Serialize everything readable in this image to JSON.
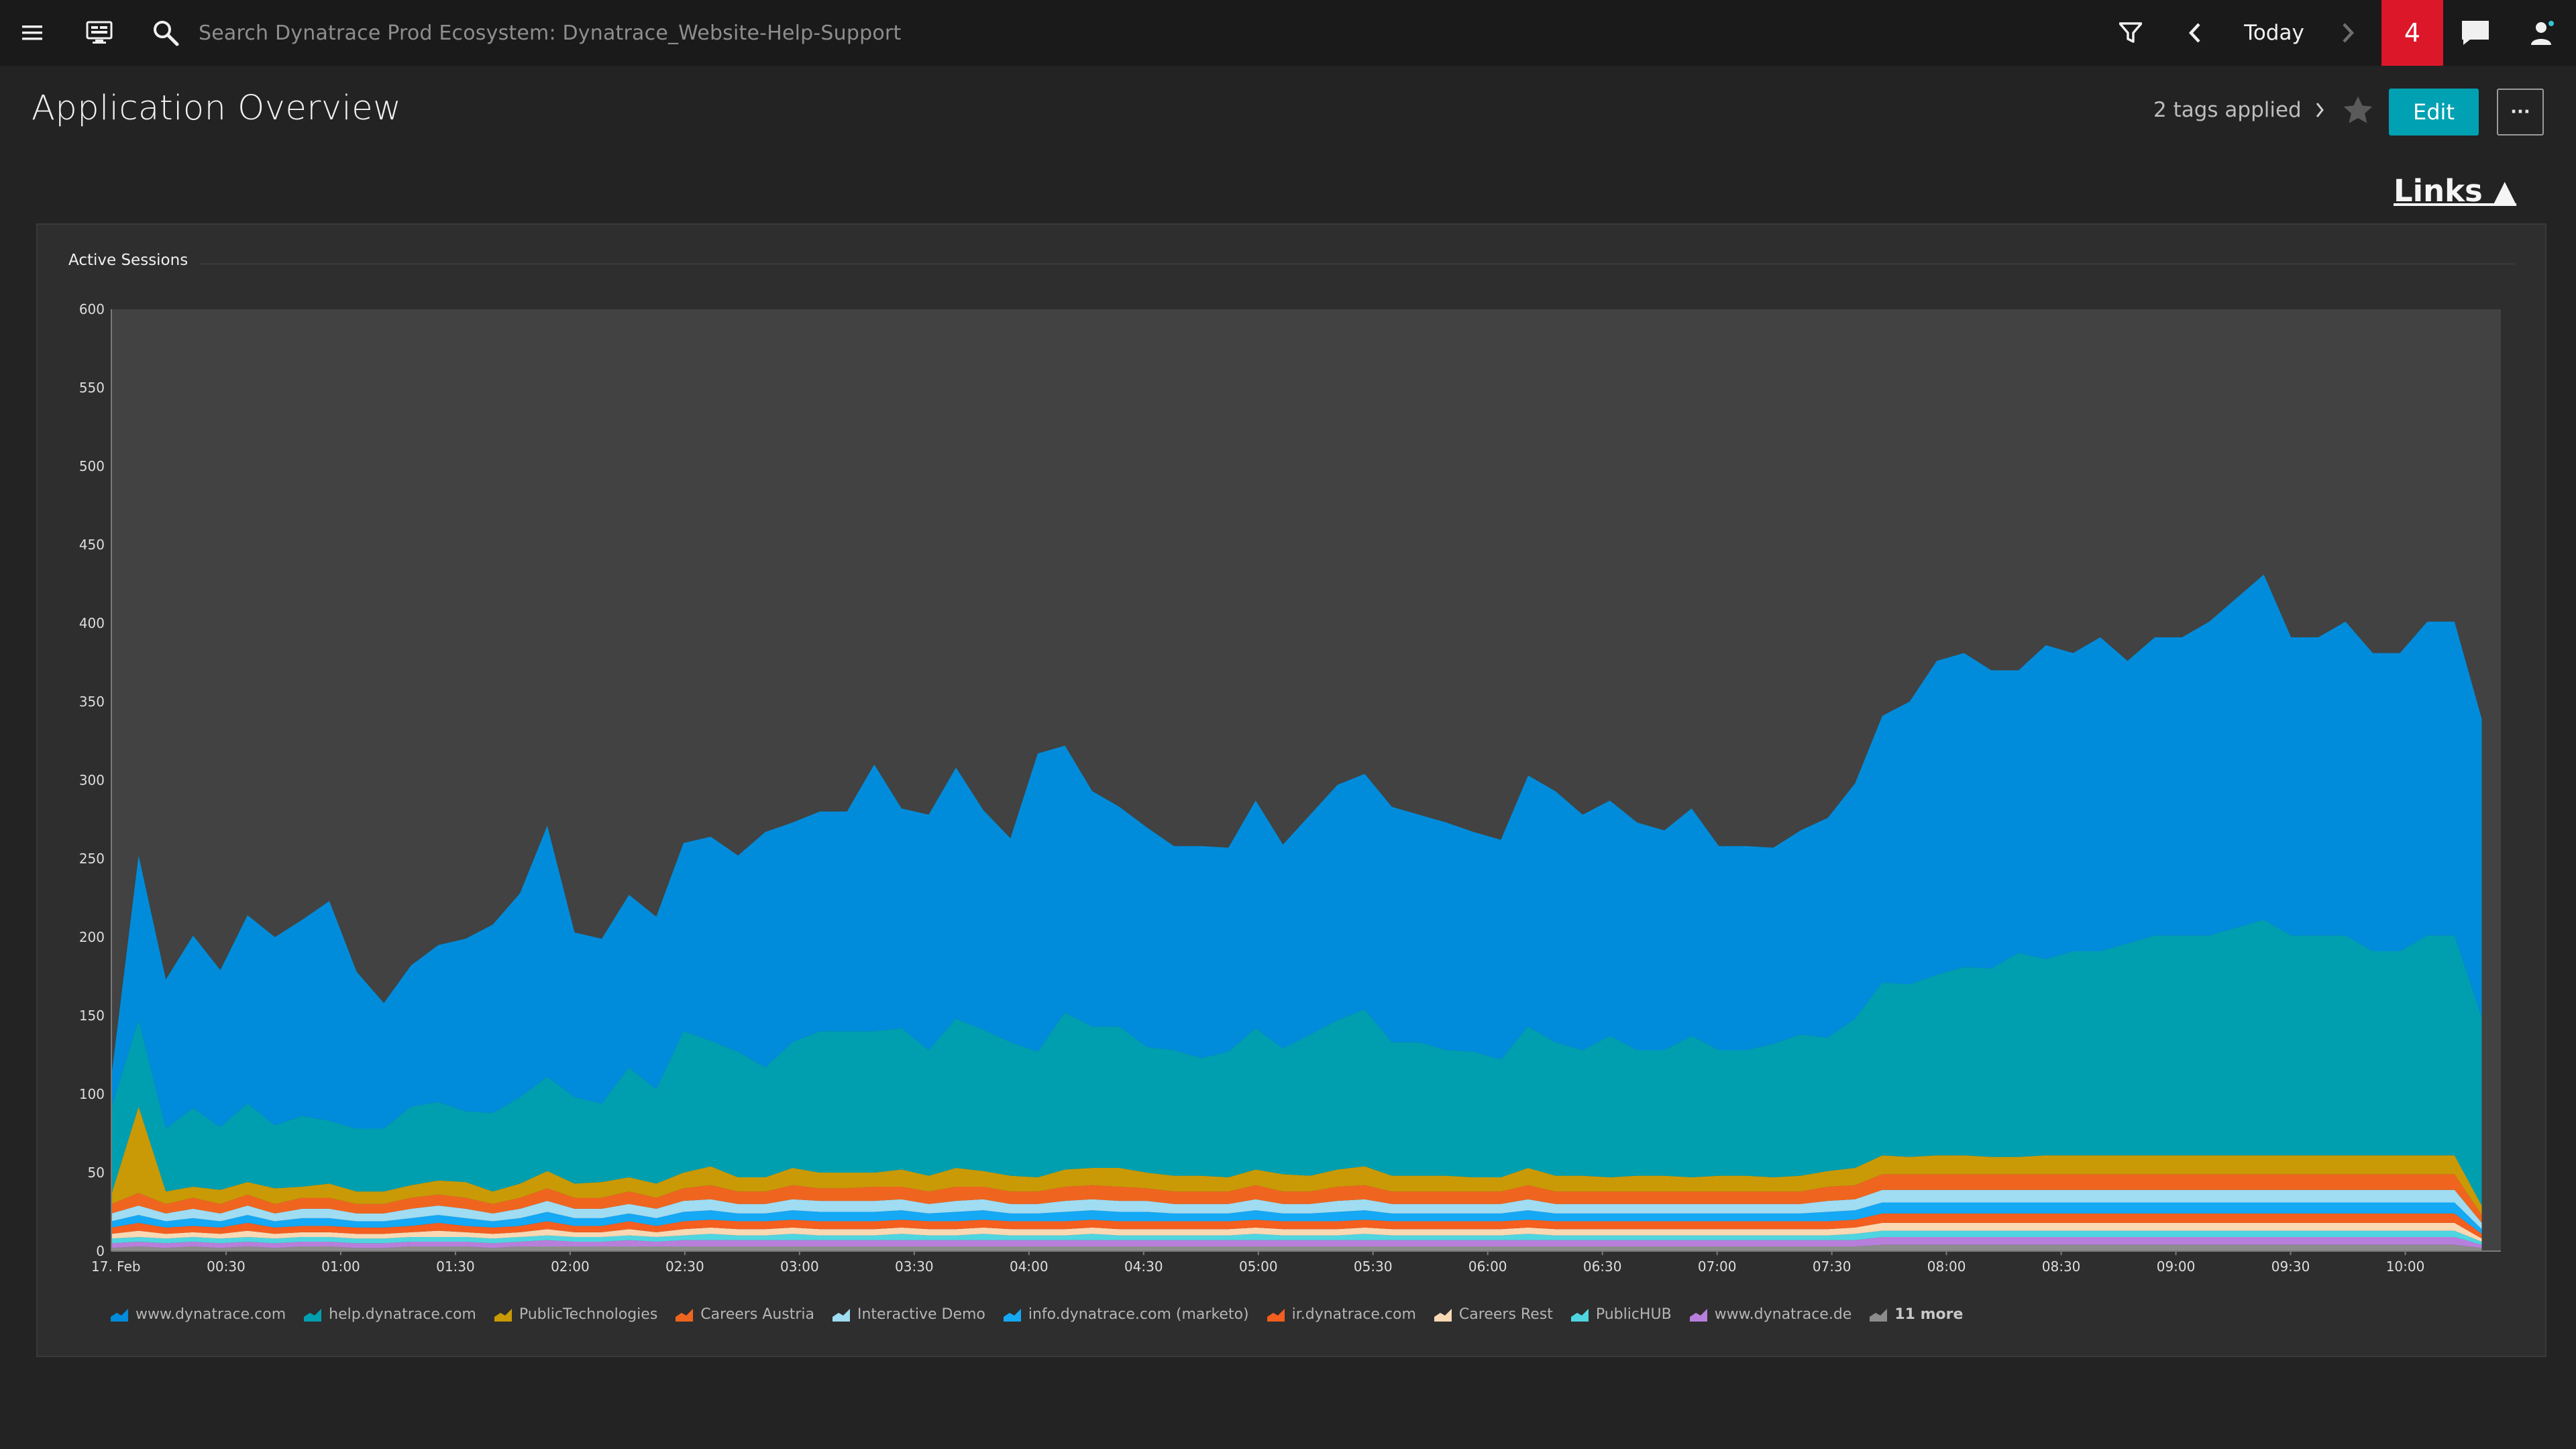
{
  "topbar": {
    "search_placeholder": "Search Dynatrace Prod Ecosystem: Dynatrace_Website-Help-Support",
    "timeframe_label": "Today",
    "problems_count": "4"
  },
  "header": {
    "title": "Application Overview",
    "tags_label": "2 tags applied",
    "edit_label": "Edit",
    "more_label": "···",
    "links_label": "Links ▲"
  },
  "tile": {
    "title": "Active Sessions"
  },
  "chart_data": {
    "type": "area",
    "stacked": true,
    "title": "Active Sessions",
    "x_start_label": "17. Feb",
    "x_ticks": [
      "00:30",
      "01:00",
      "01:30",
      "02:00",
      "02:30",
      "03:00",
      "03:30",
      "04:00",
      "04:30",
      "05:00",
      "05:30",
      "06:00",
      "06:30",
      "07:00",
      "07:30",
      "08:00",
      "08:30",
      "09:00",
      "09:30",
      "10:00"
    ],
    "y_ticks": [
      0,
      50,
      100,
      150,
      200,
      250,
      300,
      350,
      400,
      450,
      500,
      550,
      600
    ],
    "ylim": [
      0,
      600
    ],
    "time_range": [
      "00:00",
      "10:20"
    ],
    "series": [
      {
        "name": "www.dynatrace.com",
        "color": "#008cdb",
        "values": [
          20,
          105,
          95,
          110,
          100,
          120,
          120,
          125,
          140,
          100,
          80,
          90,
          100,
          110,
          120,
          130,
          160,
          105,
          105,
          110,
          110,
          120,
          130,
          125,
          150,
          140,
          140,
          140,
          170,
          140,
          150,
          160,
          140,
          130,
          190,
          170,
          150,
          140,
          140,
          130,
          135,
          130,
          145,
          130,
          140,
          150,
          150,
          150,
          145,
          145,
          140,
          140,
          160,
          160,
          150,
          150,
          145,
          140,
          145,
          130,
          130,
          125,
          130,
          140,
          150,
          170,
          180,
          200,
          200,
          190,
          180,
          200,
          190,
          200,
          180,
          190,
          190,
          200,
          210,
          220,
          190,
          190,
          200,
          190,
          190,
          200,
          200,
          190
        ]
      },
      {
        "name": "help.dynatrace.com",
        "color": "#009fb0",
        "values": [
          55,
          55,
          40,
          50,
          40,
          50,
          40,
          45,
          40,
          40,
          40,
          50,
          50,
          45,
          50,
          55,
          60,
          55,
          50,
          70,
          60,
          90,
          80,
          80,
          70,
          80,
          90,
          90,
          90,
          90,
          80,
          95,
          90,
          85,
          80,
          100,
          90,
          90,
          80,
          80,
          75,
          80,
          90,
          80,
          90,
          95,
          100,
          85,
          85,
          80,
          80,
          75,
          90,
          85,
          80,
          90,
          80,
          80,
          90,
          80,
          80,
          85,
          90,
          85,
          95,
          110,
          110,
          115,
          120,
          120,
          130,
          125,
          130,
          130,
          135,
          140,
          140,
          140,
          145,
          150,
          140,
          140,
          140,
          130,
          130,
          140,
          140,
          120
        ]
      },
      {
        "name": "PublicTechnologies",
        "color": "#c99a06",
        "values": [
          6,
          55,
          8,
          7,
          9,
          8,
          10,
          7,
          9,
          8,
          8,
          8,
          9,
          10,
          8,
          9,
          11,
          9,
          10,
          9,
          9,
          10,
          12,
          9,
          9,
          11,
          10,
          10,
          9,
          11,
          10,
          12,
          10,
          10,
          9,
          11,
          11,
          12,
          10,
          10,
          10,
          9,
          10,
          11,
          10,
          11,
          12,
          10,
          10,
          10,
          9,
          9,
          11,
          10,
          10,
          9,
          10,
          10,
          9,
          10,
          10,
          9,
          10,
          10,
          11,
          12,
          11,
          12,
          12,
          11,
          11,
          12,
          12,
          12,
          12,
          12,
          12,
          12,
          12,
          12,
          12,
          12,
          12,
          12,
          12,
          12,
          12,
          6
        ]
      },
      {
        "name": "Careers Austria",
        "color": "#ef651f",
        "values": [
          6,
          8,
          6,
          7,
          6,
          7,
          6,
          7,
          7,
          6,
          6,
          7,
          7,
          7,
          6,
          7,
          8,
          7,
          7,
          8,
          7,
          8,
          9,
          8,
          8,
          9,
          8,
          8,
          9,
          8,
          8,
          9,
          8,
          8,
          8,
          9,
          9,
          9,
          8,
          8,
          8,
          8,
          9,
          8,
          8,
          9,
          9,
          8,
          8,
          8,
          8,
          8,
          9,
          8,
          8,
          8,
          8,
          8,
          8,
          8,
          8,
          8,
          8,
          9,
          9,
          10,
          10,
          10,
          10,
          10,
          10,
          10,
          10,
          10,
          10,
          10,
          10,
          10,
          10,
          10,
          10,
          10,
          10,
          10,
          10,
          10,
          10,
          5
        ]
      },
      {
        "name": "Interactive Demo",
        "color": "#a0dcf2",
        "values": [
          5,
          6,
          5,
          6,
          5,
          6,
          5,
          6,
          6,
          5,
          5,
          6,
          6,
          6,
          5,
          6,
          7,
          6,
          6,
          6,
          6,
          7,
          7,
          6,
          6,
          7,
          7,
          7,
          7,
          7,
          6,
          7,
          7,
          6,
          6,
          7,
          7,
          7,
          7,
          6,
          6,
          6,
          7,
          6,
          6,
          7,
          7,
          6,
          6,
          6,
          6,
          6,
          7,
          6,
          6,
          6,
          6,
          6,
          6,
          6,
          6,
          6,
          6,
          7,
          7,
          8,
          8,
          8,
          8,
          8,
          8,
          8,
          8,
          8,
          8,
          8,
          8,
          8,
          8,
          8,
          8,
          8,
          8,
          8,
          8,
          8,
          8,
          4
        ]
      },
      {
        "name": "info.dynatrace.com (marketo)",
        "color": "#14a8f5",
        "values": [
          4,
          5,
          4,
          5,
          4,
          5,
          4,
          5,
          5,
          4,
          4,
          5,
          5,
          5,
          4,
          5,
          6,
          5,
          5,
          5,
          5,
          6,
          6,
          5,
          5,
          6,
          6,
          6,
          6,
          6,
          5,
          6,
          6,
          5,
          5,
          6,
          6,
          6,
          6,
          5,
          5,
          5,
          6,
          5,
          5,
          6,
          6,
          5,
          5,
          5,
          5,
          5,
          6,
          5,
          5,
          5,
          5,
          5,
          5,
          5,
          5,
          5,
          5,
          6,
          6,
          7,
          7,
          7,
          7,
          7,
          7,
          7,
          7,
          7,
          7,
          7,
          7,
          7,
          7,
          7,
          7,
          7,
          7,
          7,
          7,
          7,
          7,
          3
        ]
      },
      {
        "name": "ir.dynatrace.com",
        "color": "#f45e1e",
        "values": [
          4,
          5,
          4,
          4,
          4,
          5,
          4,
          4,
          4,
          4,
          4,
          4,
          5,
          4,
          4,
          4,
          5,
          4,
          4,
          5,
          4,
          5,
          5,
          5,
          5,
          5,
          5,
          5,
          5,
          5,
          5,
          5,
          5,
          5,
          5,
          5,
          5,
          5,
          5,
          5,
          5,
          5,
          5,
          5,
          5,
          5,
          5,
          5,
          5,
          5,
          5,
          5,
          5,
          5,
          5,
          5,
          5,
          5,
          5,
          5,
          5,
          5,
          5,
          5,
          5,
          6,
          6,
          6,
          6,
          6,
          6,
          6,
          6,
          6,
          6,
          6,
          6,
          6,
          6,
          6,
          6,
          6,
          6,
          6,
          6,
          6,
          6,
          3
        ]
      },
      {
        "name": "Careers Rest",
        "color": "#f9d8b4",
        "values": [
          3,
          4,
          3,
          3,
          3,
          4,
          3,
          3,
          3,
          3,
          3,
          3,
          4,
          3,
          3,
          3,
          4,
          3,
          3,
          4,
          3,
          4,
          4,
          4,
          4,
          4,
          4,
          4,
          4,
          4,
          4,
          4,
          4,
          4,
          4,
          4,
          4,
          4,
          4,
          4,
          4,
          4,
          4,
          4,
          4,
          4,
          4,
          4,
          4,
          4,
          4,
          4,
          4,
          4,
          4,
          4,
          4,
          4,
          4,
          4,
          4,
          4,
          4,
          4,
          4,
          5,
          5,
          5,
          5,
          5,
          5,
          5,
          5,
          5,
          5,
          5,
          5,
          5,
          5,
          5,
          5,
          5,
          5,
          5,
          5,
          5,
          5,
          2
        ]
      },
      {
        "name": "PublicHUB",
        "color": "#4fd5e0",
        "values": [
          3,
          3,
          3,
          3,
          3,
          3,
          3,
          3,
          3,
          3,
          3,
          3,
          3,
          3,
          3,
          3,
          3,
          3,
          3,
          3,
          3,
          3,
          4,
          3,
          3,
          4,
          3,
          3,
          3,
          4,
          3,
          3,
          4,
          3,
          3,
          3,
          4,
          3,
          3,
          3,
          3,
          3,
          4,
          3,
          3,
          3,
          4,
          3,
          3,
          3,
          3,
          3,
          4,
          3,
          3,
          3,
          3,
          3,
          3,
          3,
          3,
          3,
          3,
          3,
          4,
          4,
          4,
          4,
          4,
          4,
          4,
          4,
          4,
          4,
          4,
          4,
          4,
          4,
          4,
          4,
          4,
          4,
          4,
          4,
          4,
          4,
          4,
          2
        ]
      },
      {
        "name": "www.dynatrace.de",
        "color": "#b77fdb",
        "values": [
          3,
          3,
          3,
          3,
          3,
          3,
          3,
          3,
          3,
          3,
          3,
          3,
          3,
          3,
          3,
          3,
          4,
          3,
          3,
          4,
          3,
          4,
          4,
          4,
          4,
          4,
          4,
          4,
          4,
          4,
          4,
          4,
          4,
          4,
          4,
          4,
          4,
          4,
          4,
          4,
          4,
          4,
          4,
          4,
          4,
          4,
          4,
          4,
          4,
          4,
          4,
          4,
          4,
          4,
          4,
          4,
          4,
          4,
          4,
          4,
          4,
          4,
          4,
          4,
          4,
          5,
          5,
          5,
          5,
          5,
          5,
          5,
          5,
          5,
          5,
          5,
          5,
          5,
          5,
          5,
          5,
          5,
          5,
          5,
          5,
          5,
          5,
          2
        ]
      },
      {
        "name": "11 more",
        "color": "#8c8c8c",
        "values": [
          2,
          3,
          2,
          3,
          2,
          3,
          2,
          3,
          3,
          2,
          2,
          3,
          3,
          3,
          2,
          3,
          3,
          3,
          3,
          3,
          3,
          3,
          3,
          3,
          3,
          3,
          3,
          3,
          3,
          3,
          3,
          3,
          3,
          3,
          3,
          3,
          3,
          3,
          3,
          3,
          3,
          3,
          3,
          3,
          3,
          3,
          3,
          3,
          3,
          3,
          3,
          3,
          3,
          3,
          3,
          3,
          3,
          3,
          3,
          3,
          3,
          3,
          3,
          3,
          3,
          4,
          4,
          4,
          4,
          4,
          4,
          4,
          4,
          4,
          4,
          4,
          4,
          4,
          4,
          4,
          4,
          4,
          4,
          4,
          4,
          4,
          4,
          2
        ]
      }
    ]
  }
}
